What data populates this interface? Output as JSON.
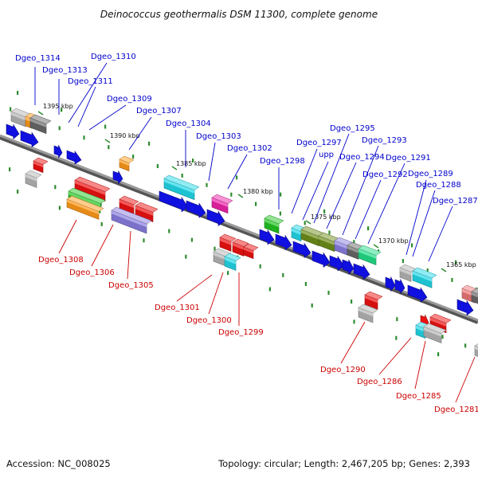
{
  "title": "Deinococcus geothermalis DSM 11300, complete genome",
  "footer": {
    "accession": "Accession: NC_008025",
    "topology": "Topology: circular; Length: 2,467,205 bp; Genes: 2,393"
  },
  "colors": {
    "top_label": "#0000cc",
    "bottom_label": "#cc0000",
    "backbone": "#808080",
    "tick": "#2e8b2e",
    "blue_gene": "#1010e0",
    "red_gene": "#ee1111",
    "cyan_gene": "#22d8e8",
    "green_gene": "#22c422",
    "orange_gene": "#ff9a1a",
    "purple_gene": "#8a7ee0",
    "magenta_gene": "#ee22aa",
    "olive_gene": "#6e8e1a",
    "gray_gene": "#b5b5b5",
    "dark_gray_gene": "#6a6a6a",
    "seagreen_gene": "#22dd88",
    "pink_gene": "#ee7777"
  },
  "kbp_markers": [
    "1395 kbp",
    "1390 kbp",
    "1385 kbp",
    "1380 kbp",
    "1375 kbp",
    "1370 kbp",
    "1365 kbp"
  ],
  "top_labels": [
    "Dgeo_1314",
    "Dgeo_1313",
    "Dgeo_1310",
    "Dgeo_1311",
    "Dgeo_1309",
    "Dgeo_1307",
    "Dgeo_1304",
    "Dgeo_1303",
    "Dgeo_1302",
    "Dgeo_1298",
    "Dgeo_1297",
    "upp",
    "Dgeo_1295",
    "Dgeo_1294",
    "Dgeo_1293",
    "Dgeo_1292",
    "Dgeo_1291",
    "Dgeo_1289",
    "Dgeo_1288",
    "Dgeo_1287"
  ],
  "bottom_labels": [
    "Dgeo_1308",
    "Dgeo_1306",
    "Dgeo_1305",
    "Dgeo_1301",
    "Dgeo_1300",
    "Dgeo_1299",
    "Dgeo_1290",
    "Dgeo_1286",
    "Dgeo_1285",
    "Dgeo_1281"
  ]
}
